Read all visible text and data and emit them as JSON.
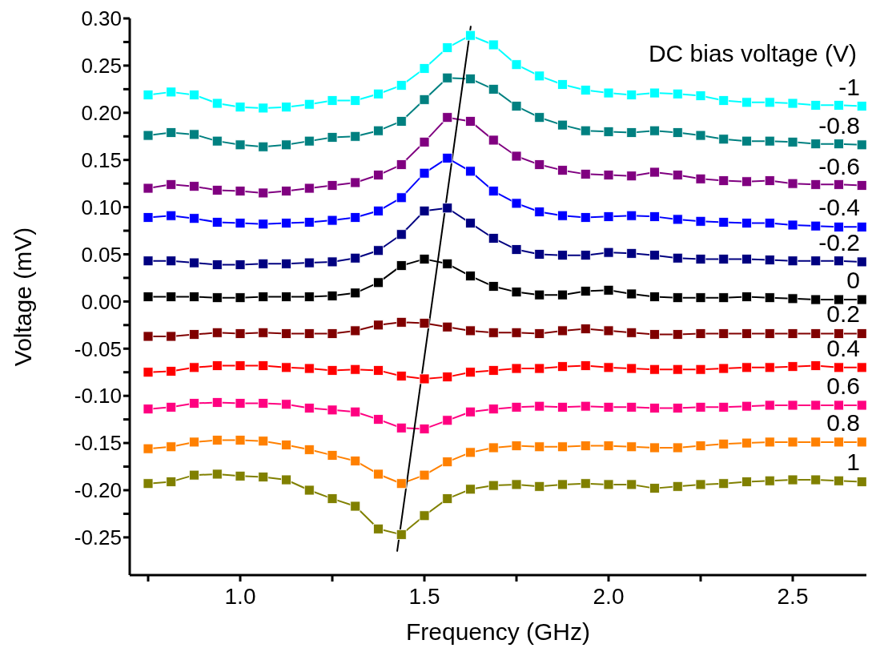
{
  "chart_data": {
    "type": "line",
    "xlabel": "Frequency (GHz)",
    "ylabel": "Voltage (mV)",
    "legend_title": "DC bias voltage (V)",
    "marker": "square",
    "x": [
      0.75,
      0.8125,
      0.875,
      0.9375,
      1,
      1.0625,
      1.125,
      1.1875,
      1.25,
      1.3125,
      1.375,
      1.4375,
      1.5,
      1.5625,
      1.625,
      1.6875,
      1.75,
      1.8125,
      1.875,
      1.9375,
      2,
      2.0625,
      2.125,
      2.1875,
      2.25,
      2.3125,
      2.375,
      2.4375,
      2.5,
      2.5625,
      2.625,
      2.6875
    ],
    "xlim": [
      0.7,
      2.7
    ],
    "xticks": [
      {
        "value": 0.75,
        "label": null
      },
      {
        "value": 1,
        "label": "1.0"
      },
      {
        "value": 1.25,
        "label": null
      },
      {
        "value": 1.5,
        "label": "1.5"
      },
      {
        "value": 1.75,
        "label": null
      },
      {
        "value": 2,
        "label": "2.0"
      },
      {
        "value": 2.25,
        "label": null
      },
      {
        "value": 2.5,
        "label": "2.5"
      }
    ],
    "ylim": [
      -0.29,
      0.3
    ],
    "yticks": [
      {
        "value": -0.25,
        "label": "-0.25"
      },
      {
        "value": -0.225,
        "label": null
      },
      {
        "value": -0.2,
        "label": "-0.20"
      },
      {
        "value": -0.175,
        "label": null
      },
      {
        "value": -0.15,
        "label": "-0.15"
      },
      {
        "value": -0.125,
        "label": null
      },
      {
        "value": -0.1,
        "label": "-0.10"
      },
      {
        "value": -0.075,
        "label": null
      },
      {
        "value": -0.05,
        "label": "-0.05"
      },
      {
        "value": -0.025,
        "label": null
      },
      {
        "value": 0,
        "label": "0.00"
      },
      {
        "value": 0.025,
        "label": null
      },
      {
        "value": 0.05,
        "label": "0.05"
      },
      {
        "value": 0.075,
        "label": null
      },
      {
        "value": 0.1,
        "label": "0.10"
      },
      {
        "value": 0.125,
        "label": null
      },
      {
        "value": 0.15,
        "label": "0.15"
      },
      {
        "value": 0.175,
        "label": null
      },
      {
        "value": 0.2,
        "label": "0.20"
      },
      {
        "value": 0.225,
        "label": null
      },
      {
        "value": 0.25,
        "label": "0.25"
      },
      {
        "value": 0.275,
        "label": null
      },
      {
        "value": 0.3,
        "label": "0.30"
      }
    ],
    "series": [
      {
        "name": "-1",
        "color": "#00ffff",
        "values": [
          0.219,
          0.222,
          0.219,
          0.21,
          0.206,
          0.205,
          0.206,
          0.209,
          0.213,
          0.213,
          0.22,
          0.229,
          0.247,
          0.269,
          0.282,
          0.272,
          0.251,
          0.239,
          0.23,
          0.224,
          0.221,
          0.219,
          0.221,
          0.22,
          0.218,
          0.213,
          0.211,
          0.211,
          0.21,
          0.208,
          0.208,
          0.207
        ]
      },
      {
        "name": "-0.8",
        "color": "#008080",
        "values": [
          0.176,
          0.179,
          0.177,
          0.17,
          0.166,
          0.164,
          0.166,
          0.17,
          0.174,
          0.175,
          0.181,
          0.191,
          0.214,
          0.237,
          0.236,
          0.225,
          0.207,
          0.195,
          0.187,
          0.181,
          0.18,
          0.179,
          0.181,
          0.179,
          0.176,
          0.172,
          0.17,
          0.17,
          0.169,
          0.167,
          0.167,
          0.166
        ]
      },
      {
        "name": "-0.6",
        "color": "#800080",
        "values": [
          0.12,
          0.124,
          0.122,
          0.118,
          0.117,
          0.115,
          0.117,
          0.12,
          0.123,
          0.126,
          0.134,
          0.145,
          0.169,
          0.195,
          0.191,
          0.171,
          0.154,
          0.145,
          0.139,
          0.135,
          0.134,
          0.133,
          0.137,
          0.134,
          0.13,
          0.128,
          0.127,
          0.128,
          0.125,
          0.124,
          0.124,
          0.123
        ]
      },
      {
        "name": "-0.4",
        "color": "#0000ff",
        "values": [
          0.089,
          0.091,
          0.088,
          0.084,
          0.083,
          0.082,
          0.083,
          0.084,
          0.086,
          0.089,
          0.096,
          0.11,
          0.136,
          0.152,
          0.138,
          0.117,
          0.104,
          0.095,
          0.091,
          0.089,
          0.09,
          0.091,
          0.09,
          0.087,
          0.085,
          0.084,
          0.083,
          0.083,
          0.081,
          0.08,
          0.079,
          0.079
        ]
      },
      {
        "name": "-0.2",
        "color": "#000080",
        "values": [
          0.043,
          0.043,
          0.041,
          0.039,
          0.039,
          0.04,
          0.04,
          0.041,
          0.042,
          0.046,
          0.054,
          0.071,
          0.096,
          0.099,
          0.083,
          0.067,
          0.055,
          0.05,
          0.049,
          0.049,
          0.052,
          0.051,
          0.049,
          0.046,
          0.045,
          0.045,
          0.045,
          0.044,
          0.043,
          0.043,
          0.043,
          0.042
        ]
      },
      {
        "name": "0",
        "color": "#000000",
        "values": [
          0.005,
          0.005,
          0.005,
          0.004,
          0.004,
          0.005,
          0.005,
          0.005,
          0.006,
          0.009,
          0.02,
          0.038,
          0.045,
          0.04,
          0.027,
          0.016,
          0.01,
          0.007,
          0.007,
          0.011,
          0.012,
          0.008,
          0.005,
          0.004,
          0.004,
          0.004,
          0.005,
          0.004,
          0.003,
          0.002,
          0.002,
          0.002
        ]
      },
      {
        "name": "0.2",
        "color": "#800000",
        "values": [
          -0.037,
          -0.037,
          -0.035,
          -0.033,
          -0.034,
          -0.033,
          -0.034,
          -0.034,
          -0.034,
          -0.031,
          -0.025,
          -0.022,
          -0.023,
          -0.027,
          -0.031,
          -0.033,
          -0.033,
          -0.034,
          -0.031,
          -0.029,
          -0.031,
          -0.033,
          -0.035,
          -0.035,
          -0.034,
          -0.034,
          -0.034,
          -0.034,
          -0.034,
          -0.034,
          -0.034,
          -0.034
        ]
      },
      {
        "name": "0.4",
        "color": "#ff0000",
        "values": [
          -0.075,
          -0.074,
          -0.07,
          -0.068,
          -0.068,
          -0.068,
          -0.07,
          -0.071,
          -0.073,
          -0.072,
          -0.073,
          -0.079,
          -0.082,
          -0.08,
          -0.075,
          -0.073,
          -0.071,
          -0.071,
          -0.069,
          -0.068,
          -0.07,
          -0.071,
          -0.072,
          -0.072,
          -0.072,
          -0.071,
          -0.07,
          -0.07,
          -0.069,
          -0.068,
          -0.07,
          -0.07
        ]
      },
      {
        "name": "0.6",
        "color": "#ff0080",
        "values": [
          -0.114,
          -0.112,
          -0.108,
          -0.107,
          -0.108,
          -0.108,
          -0.109,
          -0.113,
          -0.115,
          -0.117,
          -0.125,
          -0.134,
          -0.135,
          -0.126,
          -0.117,
          -0.114,
          -0.112,
          -0.111,
          -0.112,
          -0.111,
          -0.112,
          -0.112,
          -0.113,
          -0.113,
          -0.112,
          -0.112,
          -0.111,
          -0.11,
          -0.11,
          -0.11,
          -0.11,
          -0.11
        ]
      },
      {
        "name": "0.8",
        "color": "#ff8000",
        "values": [
          -0.156,
          -0.154,
          -0.149,
          -0.147,
          -0.147,
          -0.148,
          -0.152,
          -0.157,
          -0.163,
          -0.169,
          -0.183,
          -0.193,
          -0.184,
          -0.17,
          -0.16,
          -0.155,
          -0.153,
          -0.154,
          -0.154,
          -0.153,
          -0.153,
          -0.154,
          -0.155,
          -0.155,
          -0.153,
          -0.151,
          -0.15,
          -0.149,
          -0.149,
          -0.149,
          -0.149,
          -0.149
        ]
      },
      {
        "name": "1",
        "color": "#808000",
        "values": [
          -0.193,
          -0.191,
          -0.184,
          -0.183,
          -0.185,
          -0.186,
          -0.189,
          -0.2,
          -0.209,
          -0.217,
          -0.241,
          -0.247,
          -0.227,
          -0.209,
          -0.199,
          -0.195,
          -0.194,
          -0.196,
          -0.194,
          -0.193,
          -0.194,
          -0.194,
          -0.198,
          -0.196,
          -0.194,
          -0.193,
          -0.191,
          -0.19,
          -0.189,
          -0.189,
          -0.19,
          -0.191
        ]
      },
      {
        "type": "line",
        "color": "#000000",
        "marker": "none",
        "x": [
          1.426,
          1.626
        ],
        "values": [
          -0.265,
          0.292
        ]
      }
    ]
  }
}
